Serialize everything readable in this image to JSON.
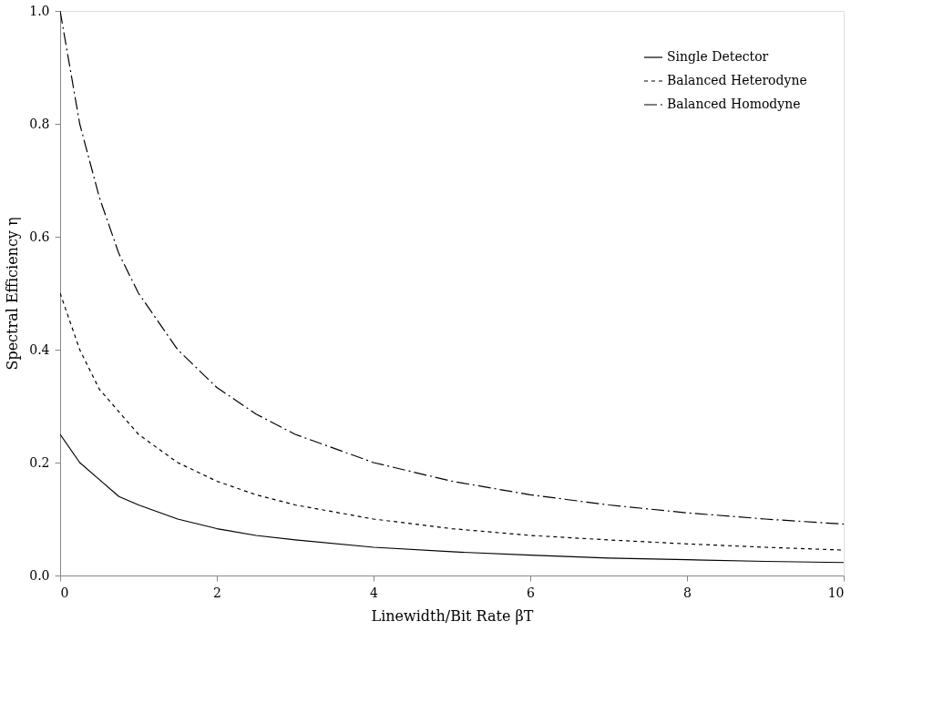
{
  "chart_data": {
    "type": "line",
    "xlabel": "Linewidth/Bit Rate    βT",
    "ylabel": "Spectral Efficiency η",
    "x": [
      0,
      0.25,
      0.5,
      0.75,
      1,
      1.5,
      2,
      2.5,
      3,
      4,
      5,
      6,
      7,
      8,
      9,
      10
    ],
    "series": [
      {
        "name": "Single Detector",
        "color": "#000000",
        "line_style": "solid",
        "values": [
          0.25,
          0.2,
          0.17,
          0.14,
          0.125,
          0.1,
          0.083,
          0.071,
          0.063,
          0.05,
          0.042,
          0.036,
          0.031,
          0.028,
          0.025,
          0.023
        ]
      },
      {
        "name": "Balanced Heterodyne",
        "color": "#000000",
        "line_style": "dashed",
        "values": [
          0.5,
          0.4,
          0.33,
          0.29,
          0.25,
          0.2,
          0.167,
          0.143,
          0.125,
          0.1,
          0.083,
          0.071,
          0.063,
          0.056,
          0.05,
          0.045
        ]
      },
      {
        "name": "Balanced Homodyne",
        "color": "#000000",
        "line_style": "dashdot",
        "values": [
          1.0,
          0.8,
          0.67,
          0.57,
          0.5,
          0.4,
          0.333,
          0.286,
          0.25,
          0.2,
          0.167,
          0.143,
          0.125,
          0.111,
          0.1,
          0.091
        ]
      }
    ],
    "xlim": [
      0,
      10
    ],
    "xticks": [
      0,
      2,
      4,
      6,
      8,
      10
    ],
    "ylim": [
      0,
      1
    ],
    "yticks": [
      {
        "value": 0,
        "label": "0.0"
      },
      {
        "value": 0.2,
        "label": "0.2"
      },
      {
        "value": 0.4,
        "label": "0.4"
      },
      {
        "value": 0.6,
        "label": "0.6"
      },
      {
        "value": 0.8,
        "label": "0.8"
      },
      {
        "value": 1,
        "label": "1.0"
      }
    ],
    "grid": false,
    "legend": "top right"
  }
}
